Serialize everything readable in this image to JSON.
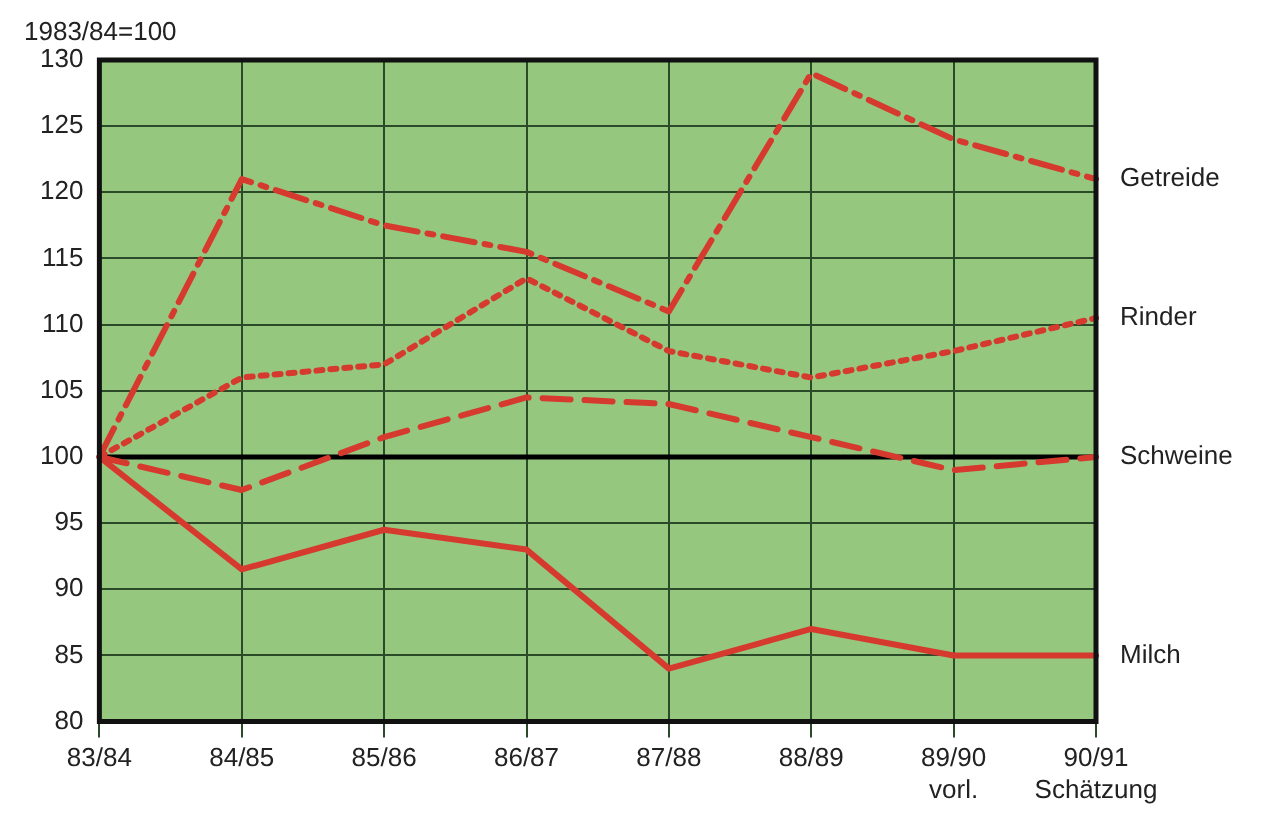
{
  "chart_data": {
    "type": "line",
    "ylabel": "1983/84=100",
    "categories": [
      "83/84",
      "84/85",
      "85/86",
      "86/87",
      "87/88",
      "88/89",
      "89/90\nvorl.",
      "90/91\nSchätzung"
    ],
    "series": [
      {
        "name": "Getreide",
        "color": "#d63a2f",
        "line_style": "dashdot",
        "values": [
          100,
          121,
          117.5,
          115.5,
          111,
          129,
          124,
          121
        ]
      },
      {
        "name": "Rinder",
        "color": "#d63a2f",
        "line_style": "dotted",
        "values": [
          100,
          106,
          107,
          113.5,
          108,
          106,
          108,
          110.5
        ]
      },
      {
        "name": "Schweine",
        "color": "#d63a2f",
        "line_style": "dashed",
        "values": [
          100,
          97.5,
          101.5,
          104.5,
          104,
          101.5,
          99,
          100
        ]
      },
      {
        "name": "Milch",
        "color": "#d63a2f",
        "line_style": "solid",
        "values": [
          100,
          91.5,
          94.5,
          93,
          84,
          87,
          85,
          85
        ]
      }
    ],
    "ylim": [
      80,
      130
    ],
    "yticks": [
      80,
      85,
      90,
      95,
      100,
      105,
      110,
      115,
      120,
      125,
      130
    ],
    "ref_lines": [
      {
        "axis": "y",
        "value": 100,
        "color": "#000000"
      }
    ],
    "grid": true,
    "legend": false,
    "marker": "none"
  }
}
